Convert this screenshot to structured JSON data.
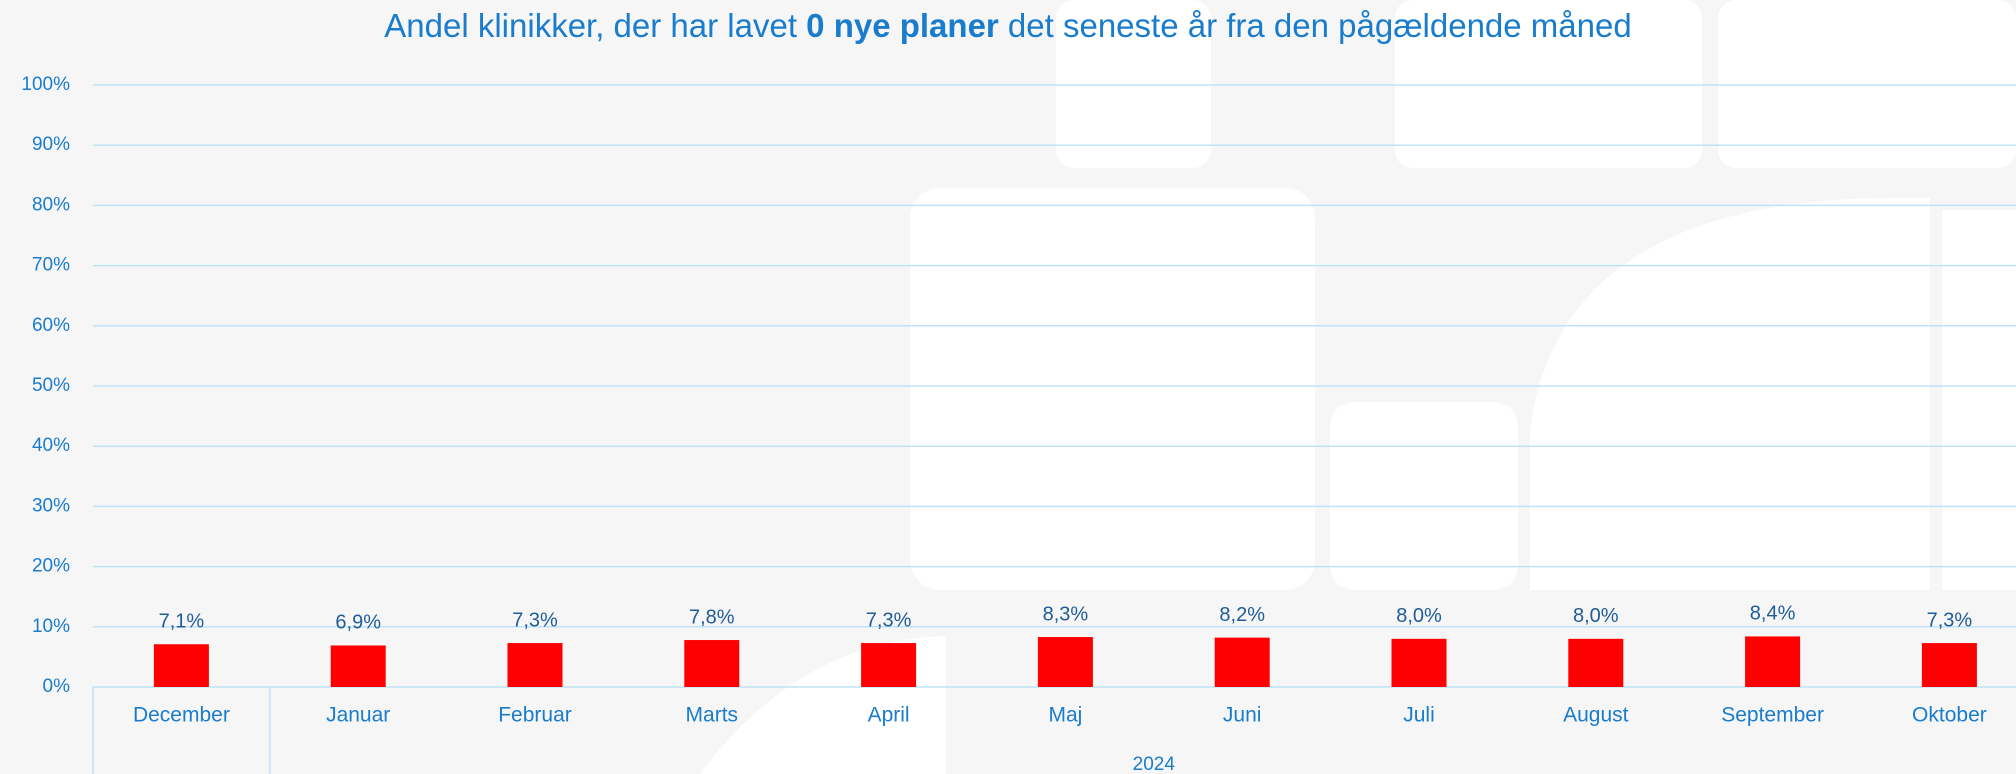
{
  "chart_data": {
    "type": "bar",
    "title": [
      "Andel klinikker, der har lavet ",
      "0 nye planer",
      " det seneste år fra den pågældende måned"
    ],
    "categories": [
      "December",
      "Januar",
      "Februar",
      "Marts",
      "April",
      "Maj",
      "Juni",
      "Juli",
      "August",
      "September",
      "Oktober"
    ],
    "values": [
      7.1,
      6.9,
      7.3,
      7.8,
      7.3,
      8.3,
      8.2,
      8.0,
      8.0,
      8.4,
      7.3
    ],
    "value_labels": [
      "7,1%",
      "6,9%",
      "7,3%",
      "7,8%",
      "7,3%",
      "8,3%",
      "8,2%",
      "8,0%",
      "8,0%",
      "8,4%",
      "7,3%"
    ],
    "color": "#ff0000",
    "groups": [
      {
        "label": "2024",
        "from": "Januar",
        "to": "Oktober"
      }
    ],
    "ylim": [
      0,
      100
    ],
    "yticks": [
      {
        "value": 0,
        "label": "0%"
      },
      {
        "value": 10,
        "label": "10%"
      },
      {
        "value": 20,
        "label": "20%"
      },
      {
        "value": 30,
        "label": "30%"
      },
      {
        "value": 40,
        "label": "40%"
      },
      {
        "value": 50,
        "label": "50%"
      },
      {
        "value": 60,
        "label": "60%"
      },
      {
        "value": 70,
        "label": "70%"
      },
      {
        "value": 80,
        "label": "80%"
      },
      {
        "value": 90,
        "label": "90%"
      },
      {
        "value": 100,
        "label": "100%"
      }
    ],
    "grid": true
  }
}
